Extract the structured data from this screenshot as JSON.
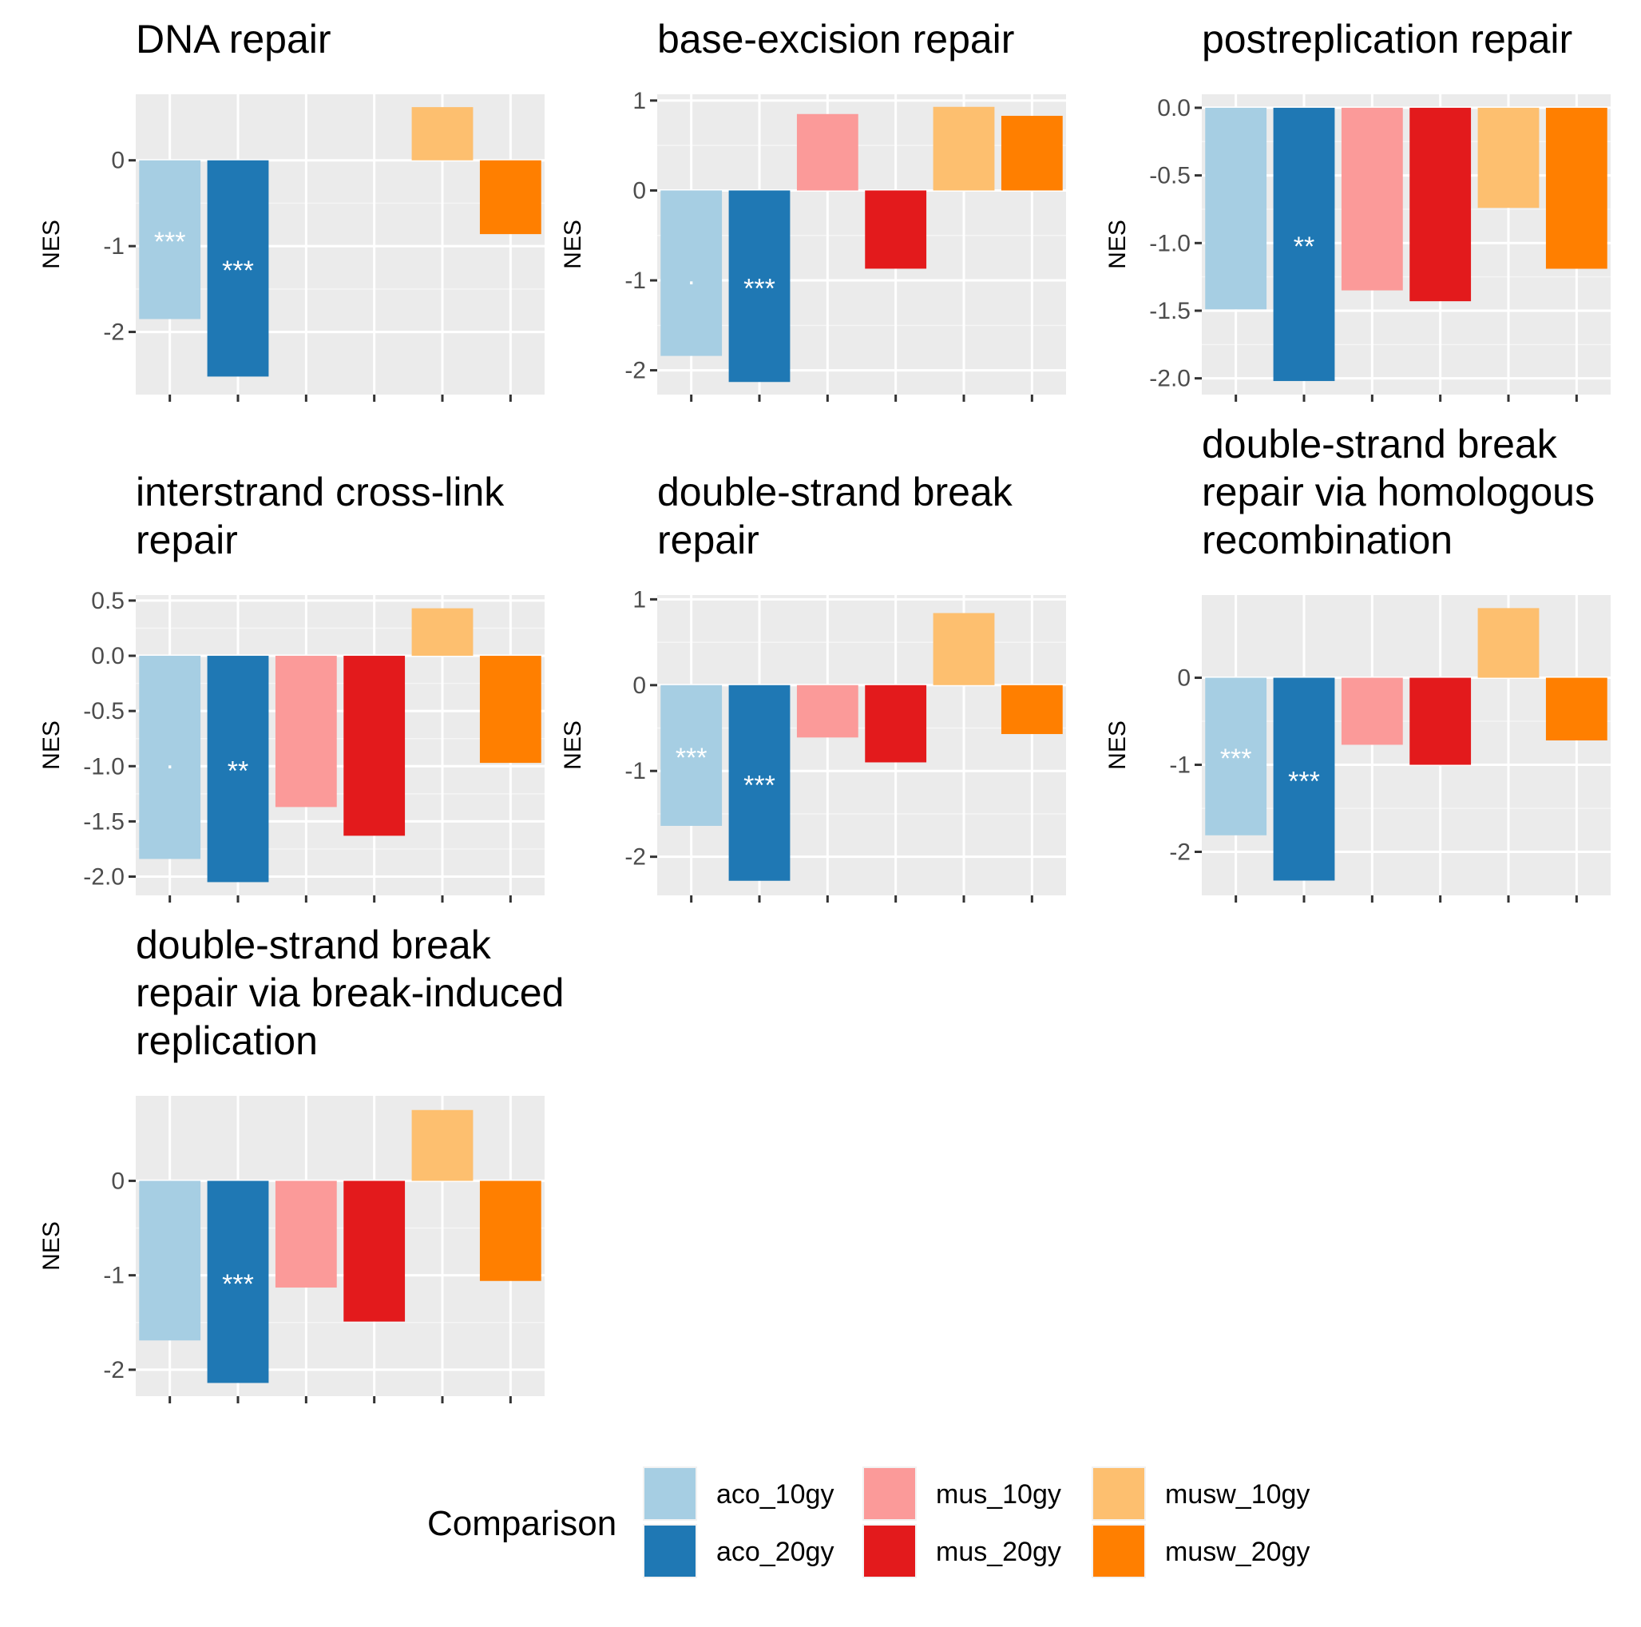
{
  "chart_data": {
    "type": "bar",
    "categories": [
      "aco_10gy",
      "aco_20gy",
      "mus_10gy",
      "mus_20gy",
      "musw_10gy",
      "musw_20gy"
    ],
    "colors": [
      "#A6CEE3",
      "#1F78B4",
      "#FB9A99",
      "#E31A1C",
      "#FDBF6F",
      "#FF7F00"
    ],
    "ylabel": "NES",
    "legend": {
      "title": "Comparison",
      "position": "bottom",
      "entries": [
        "aco_10gy",
        "aco_20gy",
        "mus_10gy",
        "mus_20gy",
        "musw_10gy",
        "musw_20gy"
      ]
    },
    "grid": true,
    "panels": [
      {
        "title_lines": [
          "DNA repair"
        ],
        "values": [
          -1.85,
          -2.52,
          null,
          null,
          0.62,
          -0.86
        ],
        "labels": [
          "***",
          "***",
          "",
          "",
          "",
          ""
        ],
        "ylim": [
          -2.73,
          0.77
        ],
        "yticks": [
          0,
          -1,
          -2
        ],
        "ytick_labels": [
          "0",
          "-1",
          "-2"
        ]
      },
      {
        "title_lines": [
          "base-excision repair"
        ],
        "values": [
          -1.84,
          -2.13,
          0.85,
          -0.87,
          0.93,
          0.83
        ],
        "labels": [
          ".",
          "***",
          "",
          "",
          "",
          ""
        ],
        "ylim": [
          -2.27,
          1.07
        ],
        "yticks": [
          1,
          0,
          -1,
          -2
        ],
        "ytick_labels": [
          "1",
          "0",
          "-1",
          "-2"
        ]
      },
      {
        "title_lines": [
          "postreplication repair"
        ],
        "values": [
          -1.49,
          -2.02,
          -1.35,
          -1.43,
          -0.74,
          -1.19
        ],
        "labels": [
          "",
          "**",
          "",
          "",
          "",
          ""
        ],
        "ylim": [
          -2.12,
          0.1
        ],
        "yticks": [
          0,
          -0.5,
          -1,
          -1.5,
          -2
        ],
        "ytick_labels": [
          "0.0",
          "-0.5",
          "-1.0",
          "-1.5",
          "-2.0"
        ]
      },
      {
        "title_lines": [
          "interstrand cross-link",
          "repair"
        ],
        "values": [
          -1.84,
          -2.05,
          -1.37,
          -1.63,
          0.43,
          -0.97
        ],
        "labels": [
          ".",
          "**",
          "",
          "",
          "",
          ""
        ],
        "ylim": [
          -2.17,
          0.55
        ],
        "yticks": [
          0.5,
          0,
          -0.5,
          -1,
          -1.5,
          -2
        ],
        "ytick_labels": [
          "0.5",
          "0.0",
          "-0.5",
          "-1.0",
          "-1.5",
          "-2.0"
        ]
      },
      {
        "title_lines": [
          "double-strand break",
          "repair"
        ],
        "values": [
          -1.64,
          -2.28,
          -0.61,
          -0.9,
          0.84,
          -0.57
        ],
        "labels": [
          "***",
          "***",
          "",
          "",
          "",
          ""
        ],
        "ylim": [
          -2.45,
          1.05
        ],
        "yticks": [
          1,
          0,
          -1,
          -2
        ],
        "ytick_labels": [
          "1",
          "0",
          "-1",
          "-2"
        ]
      },
      {
        "title_lines": [
          "double-strand break",
          "repair via homologous",
          "recombination"
        ],
        "values": [
          -1.81,
          -2.33,
          -0.77,
          -1.0,
          0.8,
          -0.72
        ],
        "labels": [
          "***",
          "***",
          "",
          "",
          "",
          ""
        ],
        "ylim": [
          -2.5,
          0.95
        ],
        "yticks": [
          0,
          -1,
          -2
        ],
        "ytick_labels": [
          "0",
          "-1",
          "-2"
        ]
      },
      {
        "title_lines": [
          "double-strand break",
          "repair via break-induced",
          "replication"
        ],
        "values": [
          -1.69,
          -2.14,
          -1.13,
          -1.49,
          0.75,
          -1.06
        ],
        "labels": [
          "",
          "***",
          "",
          "",
          "",
          ""
        ],
        "ylim": [
          -2.28,
          0.9
        ],
        "yticks": [
          0,
          -1,
          -2
        ],
        "ytick_labels": [
          "0",
          "-1",
          "-2"
        ]
      }
    ]
  }
}
